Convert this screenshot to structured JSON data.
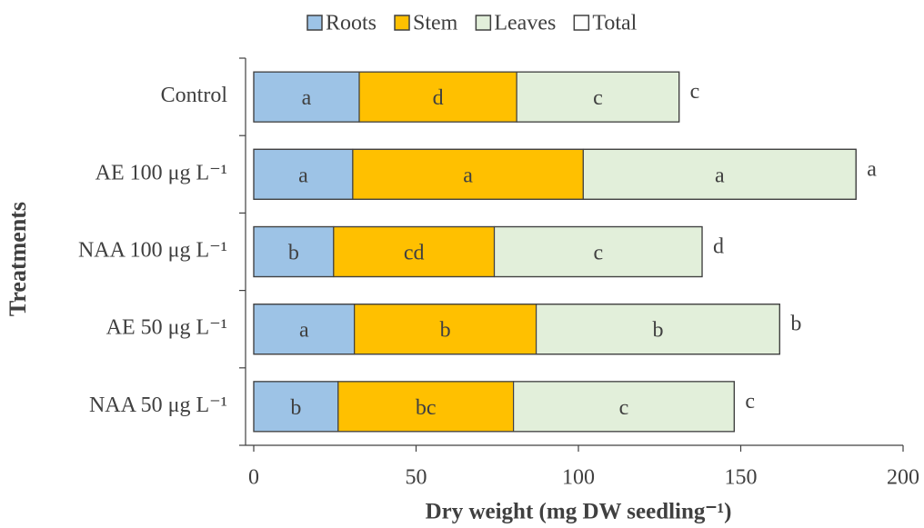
{
  "chart_data": {
    "type": "stacked_barh",
    "categories": [
      "Control",
      "AE 100 μg L⁻¹",
      "NAA 100 μg L⁻¹",
      "AE 50 μg L⁻¹",
      "NAA 50 μg L⁻¹"
    ],
    "series": [
      {
        "name": "Roots",
        "color": "#9dc3e6",
        "values": [
          32.5,
          30.5,
          24.6,
          31,
          26
        ],
        "letters": [
          "a",
          "a",
          "b",
          "a",
          "b"
        ]
      },
      {
        "name": "Stem",
        "color": "#ffc000",
        "values": [
          48.5,
          71,
          49.5,
          56,
          54
        ],
        "letters": [
          "d",
          "a",
          "cd",
          "b",
          "bc"
        ]
      },
      {
        "name": "Leaves",
        "color": "#e2efda",
        "values": [
          50,
          84,
          64,
          75,
          68
        ],
        "letters": [
          "c",
          "a",
          "c",
          "b",
          "c"
        ]
      },
      {
        "name": "Total",
        "color": "none",
        "values": [
          131,
          185.5,
          138.1,
          162,
          148
        ],
        "letters": [
          "c",
          "a",
          "d",
          "b",
          "c"
        ],
        "overlay": true
      }
    ],
    "xlim": [
      0,
      200
    ],
    "xticks": [
      0,
      50,
      100,
      150,
      200
    ],
    "xlabel": "Dry weight (mg DW seedling⁻¹)",
    "ylabel": "Treatments"
  }
}
